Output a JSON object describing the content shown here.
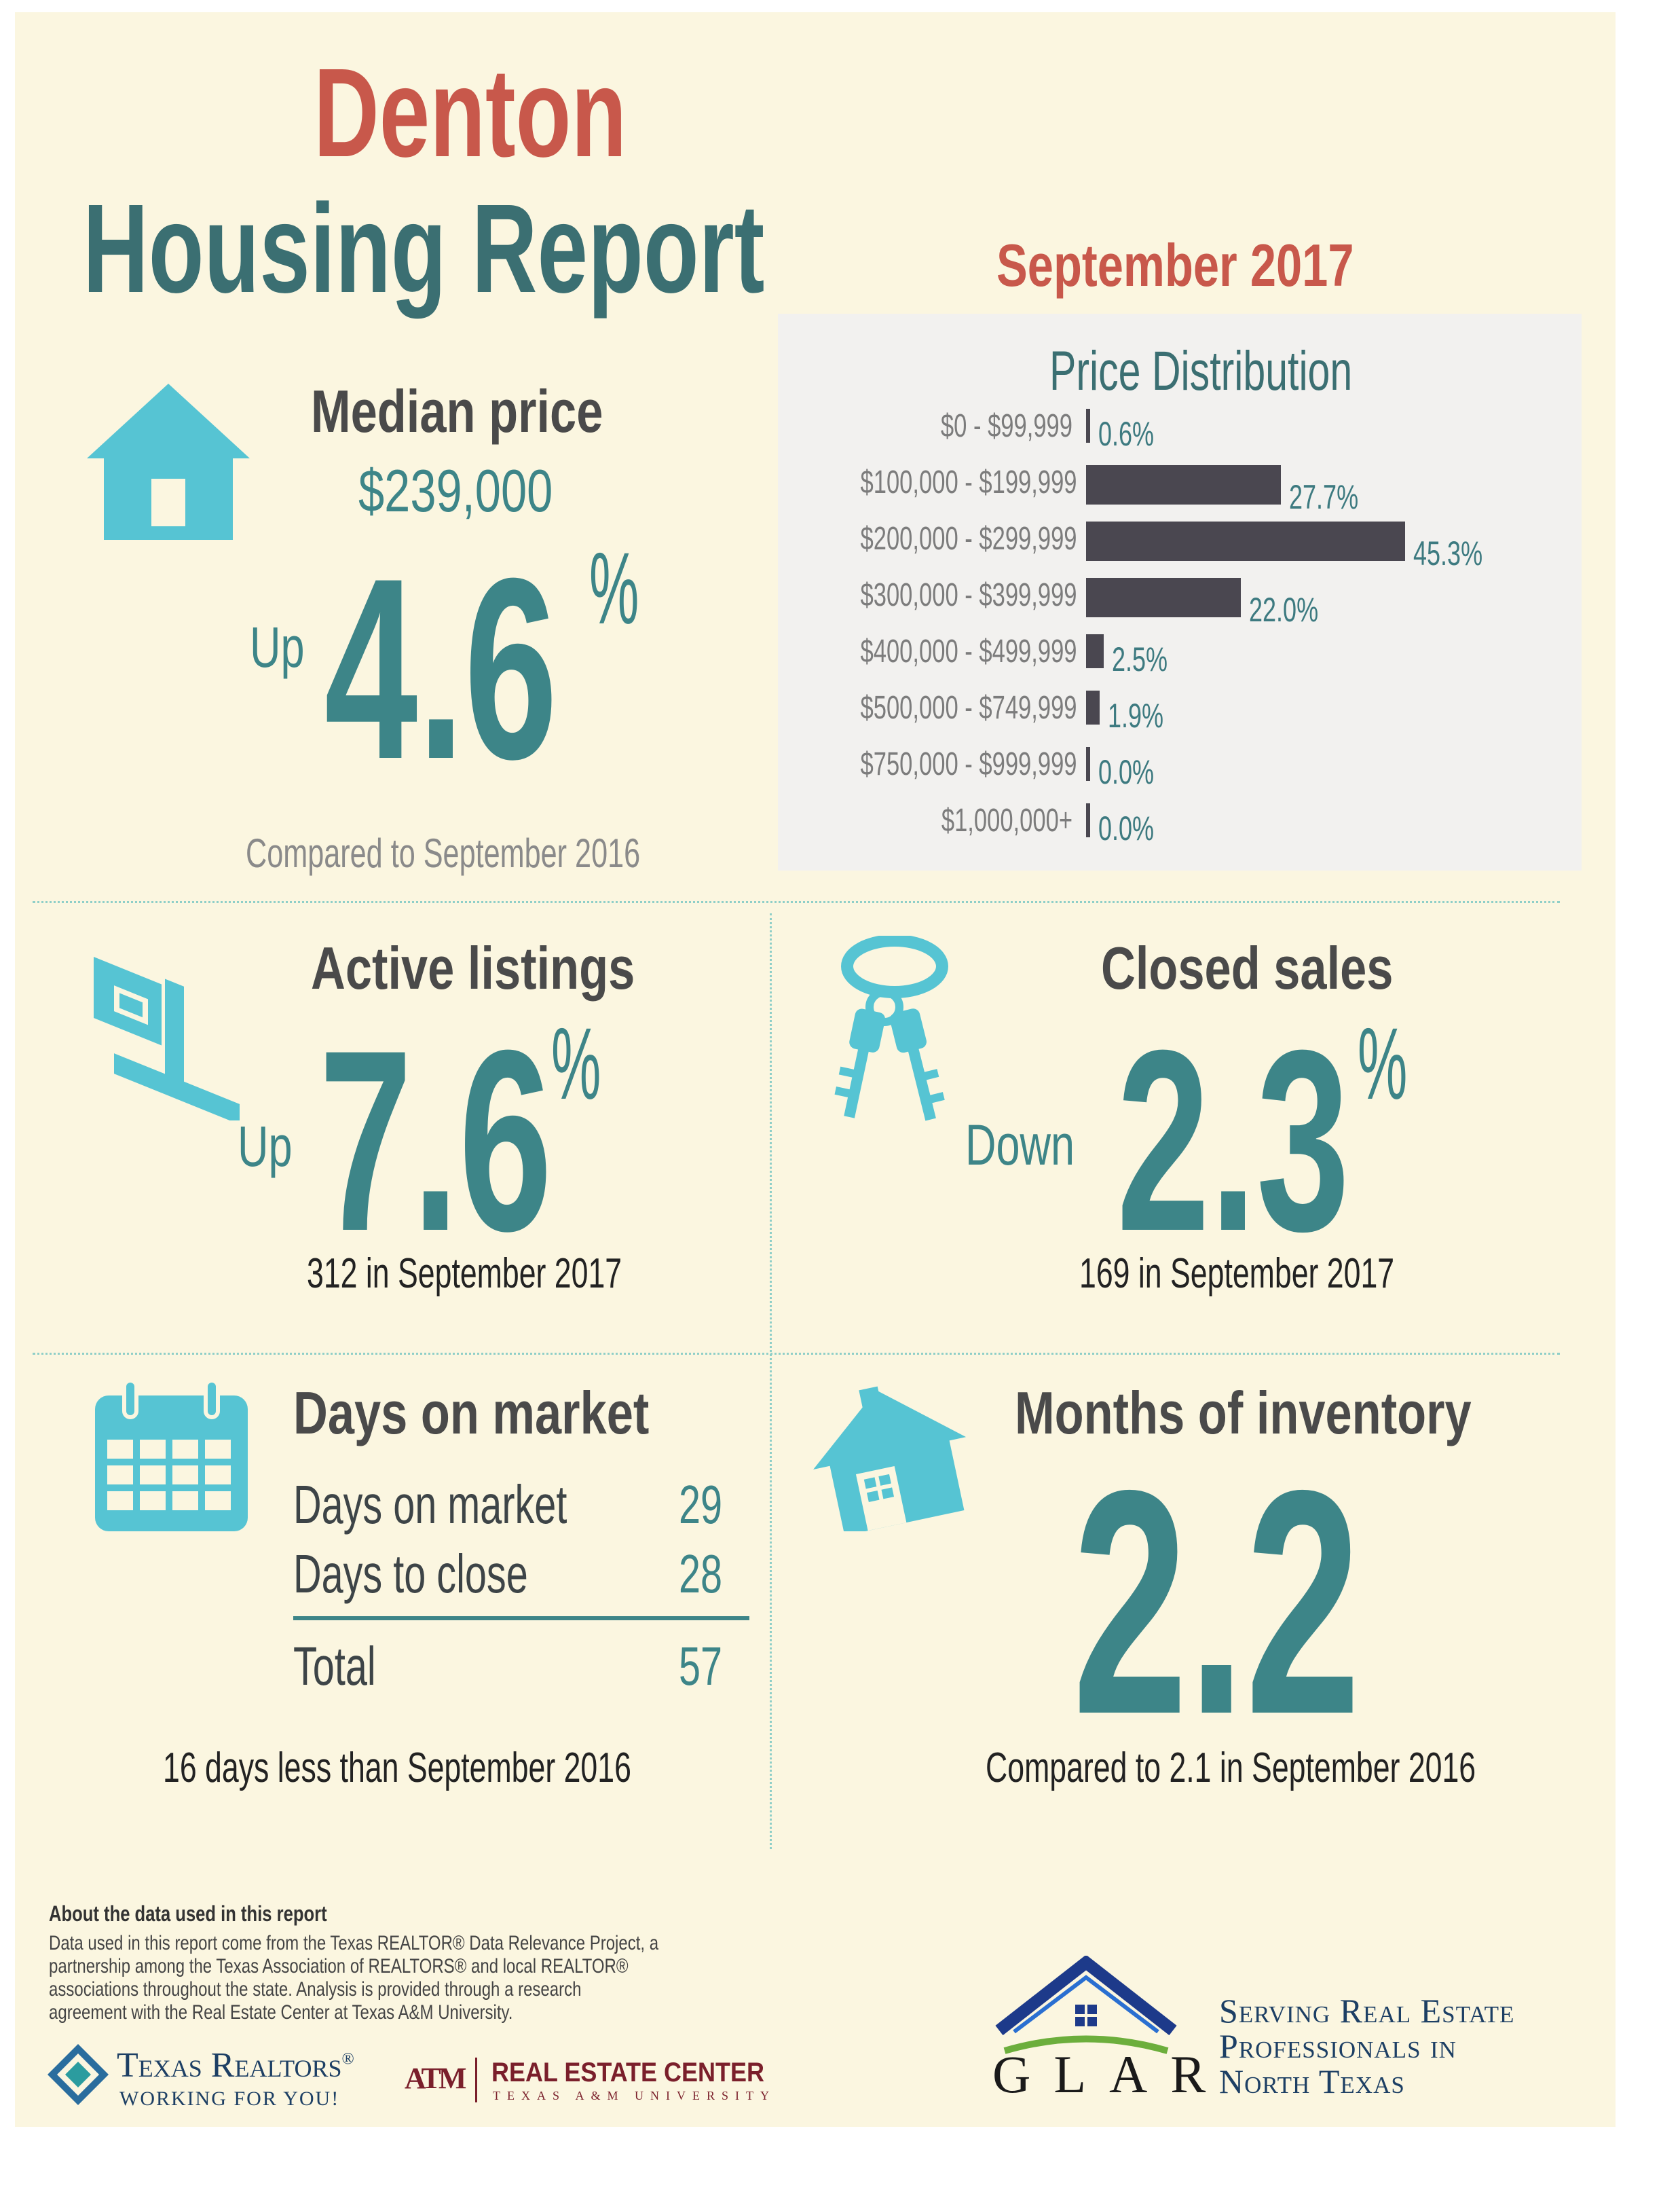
{
  "header": {
    "city": "Denton",
    "title": "Housing Report",
    "period": "September 2017"
  },
  "median_price": {
    "heading": "Median price",
    "value": "$239,000",
    "direction": "Up",
    "change": "4.6",
    "unit": "%",
    "note": "Compared to September 2016"
  },
  "price_distribution": {
    "title": "Price Distribution",
    "chart_data": {
      "type": "bar",
      "title": "Price Distribution",
      "categories": [
        "$0 - $99,999",
        "$100,000 - $199,999",
        "$200,000 - $299,999",
        "$300,000 - $399,999",
        "$400,000 - $499,999",
        "$500,000 - $749,999",
        "$750,000 - $999,999",
        "$1,000,000+"
      ],
      "values": [
        0.6,
        27.7,
        45.3,
        22.0,
        2.5,
        1.9,
        0.0,
        0.0
      ],
      "labels": [
        "0.6%",
        "27.7%",
        "45.3%",
        "22.0%",
        "2.5%",
        "1.9%",
        "0.0%",
        "0.0%"
      ],
      "orientation": "horizontal",
      "bar_color": "#4a4750"
    }
  },
  "active_listings": {
    "heading": "Active listings",
    "direction": "Up",
    "change": "7.6",
    "unit": "%",
    "note": "312 in September 2017"
  },
  "closed_sales": {
    "heading": "Closed sales",
    "direction": "Down",
    "change": "2.3",
    "unit": "%",
    "note": "169 in September 2017"
  },
  "days_on_market": {
    "heading": "Days on market",
    "rows": [
      {
        "label": "Days on market",
        "value": "29"
      },
      {
        "label": "Days to close",
        "value": "28"
      }
    ],
    "total_label": "Total",
    "total_value": "57",
    "note": "16 days less than September 2016"
  },
  "months_inventory": {
    "heading": "Months of inventory",
    "value": "2.2",
    "note": "Compared to 2.1 in September 2016"
  },
  "footer": {
    "about_title": "About the data used in this report",
    "about_lines": [
      "Data used in this report come from the Texas REALTOR® Data Relevance Project, a",
      "partnership among the Texas Association of REALTORS® and local REALTOR®",
      "associations throughout the state. Analysis is provided through a research",
      "agreement with the Real Estate Center at Texas A&M University."
    ],
    "tr_name": "Texas Realtors",
    "tr_reg": "®",
    "tr_tagline": "WORKING FOR YOU!",
    "rec_logo": "ATM",
    "rec_name": "REAL ESTATE CENTER",
    "rec_sub": "TEXAS A&M UNIVERSITY",
    "glar_name": "GLAR",
    "glar_tagline": [
      "Serving Real Estate",
      "Professionals in",
      "North Texas"
    ]
  },
  "colors": {
    "background": "#fbf6e0",
    "teal": "#3d8588",
    "icon": "#56c4d3",
    "red": "#c8584b",
    "dark": "#4a4a4a"
  }
}
